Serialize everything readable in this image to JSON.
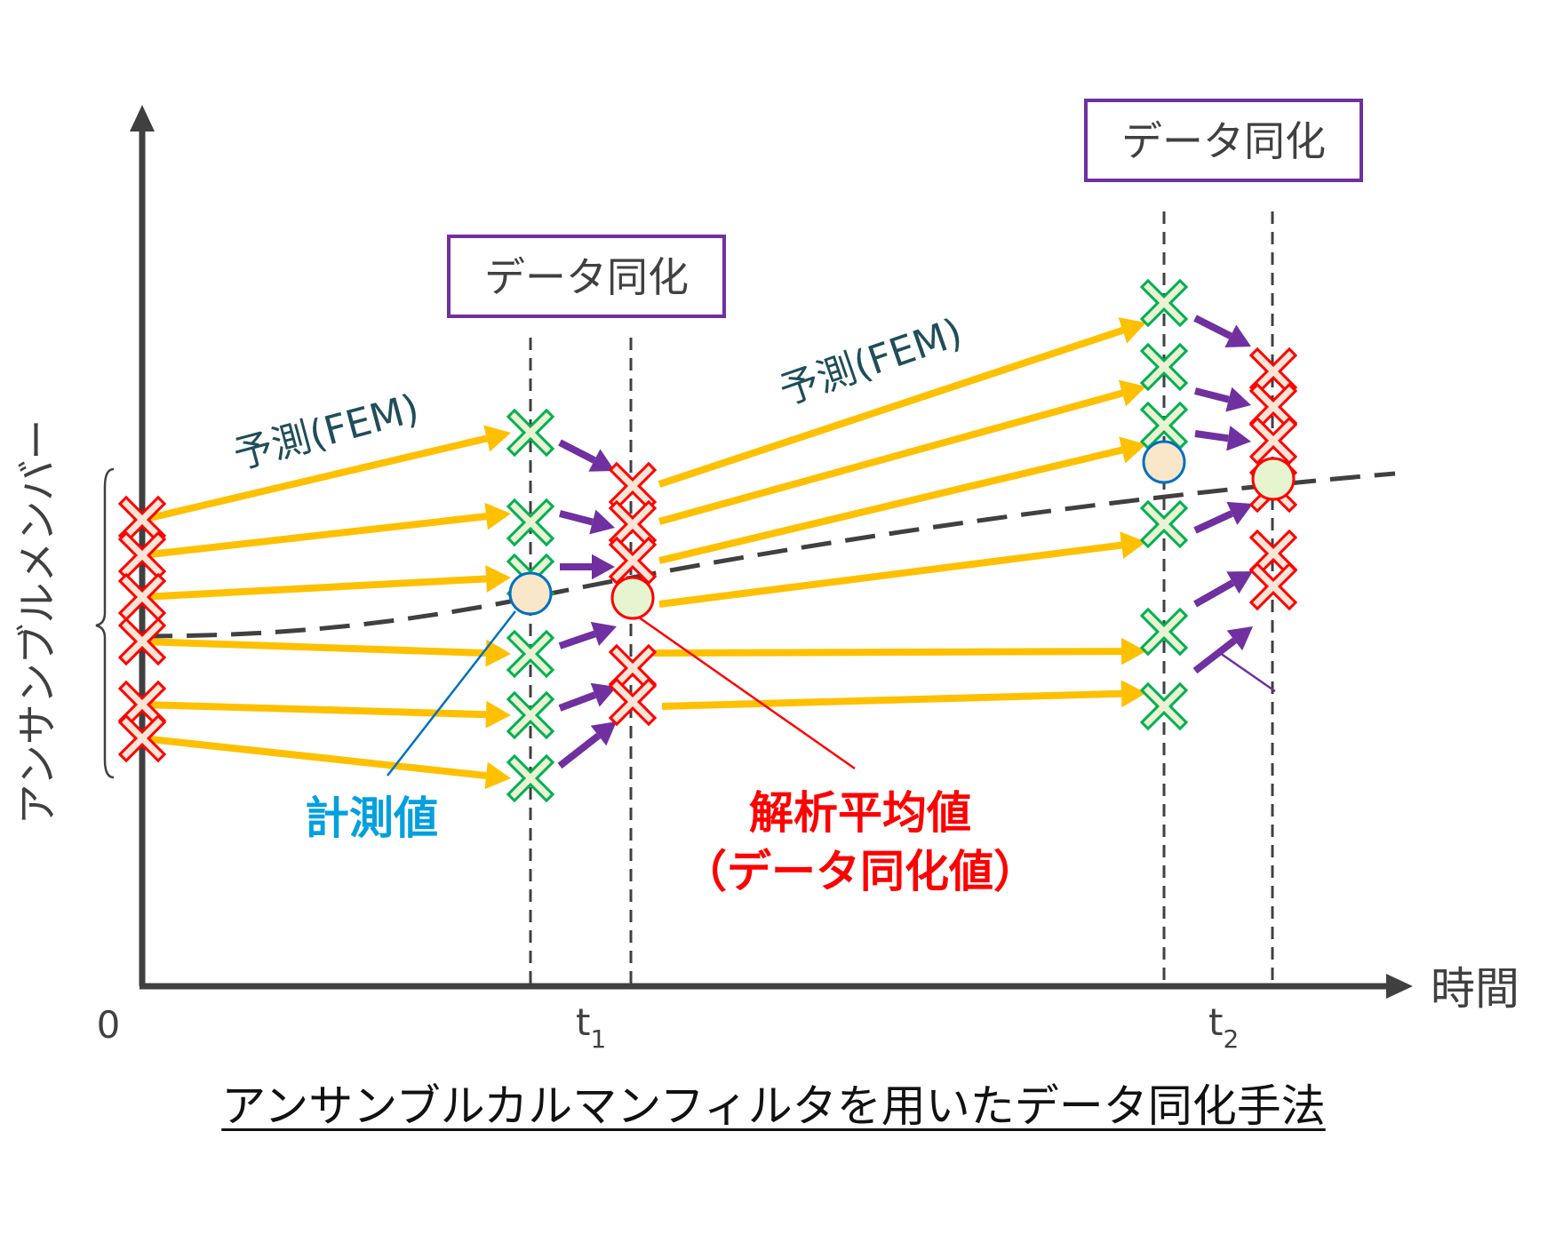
{
  "title": "アンサンブルカルマンフィルタを用いたデータ同化手法",
  "axes": {
    "y_label": "アンサンブルメンバー",
    "x_label": "時間",
    "origin_label": "0",
    "tick1_base": "t",
    "tick1_sub": "1",
    "tick2_base": "t",
    "tick2_sub": "2"
  },
  "labels": {
    "predict_1": "予測(FEM)",
    "predict_2": "予測(FEM)",
    "assim_box_1": "データ同化",
    "assim_box_2": "データ同化",
    "measured": "計測値",
    "analysis_mean": "解析平均値",
    "analysis_mean_sub": "（データ同化値）"
  },
  "colors": {
    "prediction_arrow": "#FFC000",
    "update_arrow": "#7030A0",
    "ensemble_cross": "#FF0000",
    "forecast_cross": "#00B050",
    "measured": "#0070C0",
    "analysis": "#FF0000",
    "box_border": "#7030A0",
    "trend_line": "#404040"
  },
  "icons": {
    "ensemble_member": "red-cross-icon",
    "forecast_member": "green-cross-icon",
    "measured_value": "blue-circle-icon",
    "analysis_value": "red-circle-icon"
  }
}
